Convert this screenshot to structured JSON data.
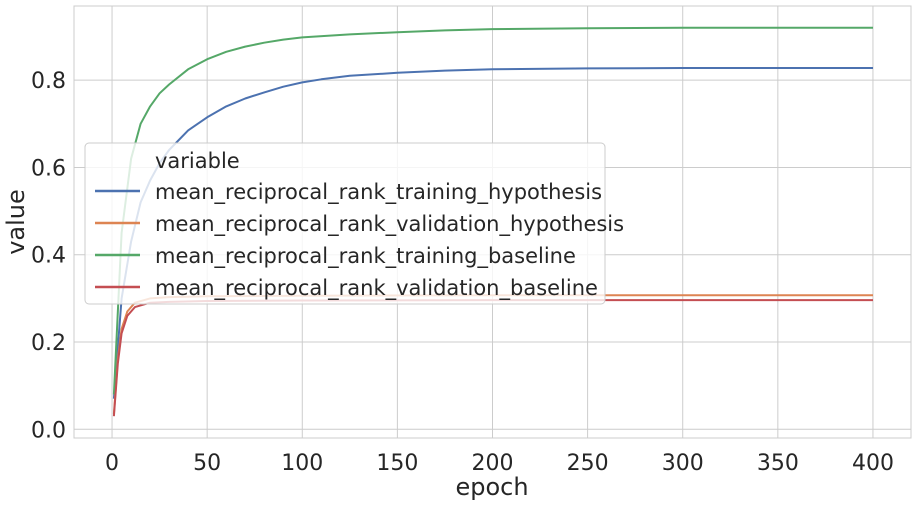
{
  "chart_data": {
    "type": "line",
    "title": "",
    "xlabel": "epoch",
    "ylabel": "value",
    "xlim": [
      -20,
      420
    ],
    "ylim": [
      -0.02,
      0.97
    ],
    "xticks": [
      0,
      50,
      100,
      150,
      200,
      250,
      300,
      350,
      400
    ],
    "yticks": [
      0.0,
      0.2,
      0.4,
      0.6,
      0.8
    ],
    "grid": true,
    "legend": {
      "title": "variable",
      "position": "center-left"
    },
    "series": [
      {
        "name": "mean_reciprocal_rank_training_hypothesis",
        "color": "#4c72b0",
        "x": [
          1,
          5,
          10,
          15,
          20,
          25,
          30,
          40,
          50,
          60,
          70,
          80,
          90,
          100,
          110,
          125,
          150,
          175,
          200,
          250,
          300,
          350,
          400
        ],
        "y": [
          0.07,
          0.3,
          0.43,
          0.52,
          0.57,
          0.61,
          0.64,
          0.685,
          0.715,
          0.74,
          0.758,
          0.772,
          0.785,
          0.795,
          0.802,
          0.81,
          0.817,
          0.822,
          0.825,
          0.827,
          0.828,
          0.828,
          0.828
        ]
      },
      {
        "name": "mean_reciprocal_rank_validation_hypothesis",
        "color": "#dd8452",
        "x": [
          1,
          3,
          5,
          8,
          12,
          20,
          30,
          50,
          100,
          200,
          300,
          400
        ],
        "y": [
          0.035,
          0.16,
          0.23,
          0.27,
          0.29,
          0.3,
          0.303,
          0.305,
          0.306,
          0.307,
          0.307,
          0.307
        ]
      },
      {
        "name": "mean_reciprocal_rank_training_baseline",
        "color": "#55a868",
        "x": [
          1,
          5,
          10,
          15,
          20,
          25,
          30,
          40,
          50,
          60,
          70,
          80,
          90,
          100,
          125,
          150,
          175,
          200,
          250,
          300,
          350,
          400
        ],
        "y": [
          0.08,
          0.45,
          0.62,
          0.7,
          0.74,
          0.77,
          0.79,
          0.825,
          0.848,
          0.865,
          0.877,
          0.886,
          0.893,
          0.898,
          0.905,
          0.91,
          0.914,
          0.917,
          0.919,
          0.92,
          0.92,
          0.92
        ]
      },
      {
        "name": "mean_reciprocal_rank_validation_baseline",
        "color": "#c44e52",
        "x": [
          1,
          3,
          5,
          8,
          12,
          20,
          30,
          50,
          100,
          200,
          300,
          400
        ],
        "y": [
          0.03,
          0.15,
          0.22,
          0.26,
          0.28,
          0.29,
          0.292,
          0.294,
          0.295,
          0.296,
          0.296,
          0.296
        ]
      }
    ]
  }
}
